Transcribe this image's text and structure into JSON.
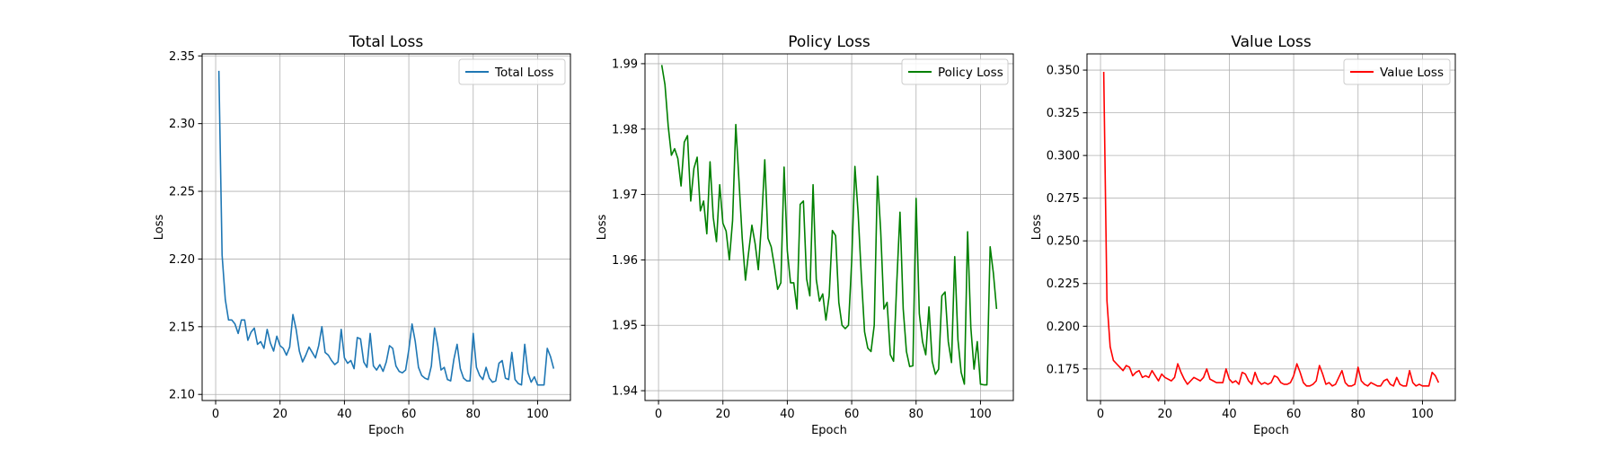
{
  "chart_data": [
    {
      "type": "line",
      "title": "Total Loss",
      "xlabel": "Epoch",
      "ylabel": "Loss",
      "xlim": [
        -4.2,
        110.2
      ],
      "ylim": [
        2.0955,
        2.3515
      ],
      "xticks": [
        0,
        20,
        40,
        60,
        80,
        100
      ],
      "yticks": [
        2.1,
        2.15,
        2.2,
        2.25,
        2.3,
        2.35
      ],
      "ytick_labels": [
        "2.10",
        "2.15",
        "2.20",
        "2.25",
        "2.30",
        "2.35"
      ],
      "grid": true,
      "legend_position": "top-right",
      "color": "#1f77b4",
      "series": [
        {
          "name": "Total Loss",
          "x": [
            1,
            2,
            3,
            4,
            5,
            6,
            7,
            8,
            9,
            10,
            11,
            12,
            13,
            14,
            15,
            16,
            17,
            18,
            19,
            20,
            21,
            22,
            23,
            24,
            25,
            26,
            27,
            28,
            29,
            30,
            31,
            32,
            33,
            34,
            35,
            36,
            37,
            38,
            39,
            40,
            41,
            42,
            43,
            44,
            45,
            46,
            47,
            48,
            49,
            50,
            51,
            52,
            53,
            54,
            55,
            56,
            57,
            58,
            59,
            60,
            61,
            62,
            63,
            64,
            65,
            66,
            67,
            68,
            69,
            70,
            71,
            72,
            73,
            74,
            75,
            76,
            77,
            78,
            79,
            80,
            81,
            82,
            83,
            84,
            85,
            86,
            87,
            88,
            89,
            90,
            91,
            92,
            93,
            94,
            95,
            96,
            97,
            98,
            99,
            100,
            101,
            102,
            103,
            104,
            105
          ],
          "y": [
            2.339,
            2.203,
            2.17,
            2.155,
            2.155,
            2.152,
            2.145,
            2.155,
            2.155,
            2.14,
            2.146,
            2.149,
            2.137,
            2.139,
            2.134,
            2.148,
            2.138,
            2.132,
            2.143,
            2.136,
            2.134,
            2.129,
            2.135,
            2.159,
            2.148,
            2.132,
            2.124,
            2.129,
            2.135,
            2.131,
            2.127,
            2.136,
            2.15,
            2.131,
            2.129,
            2.125,
            2.122,
            2.124,
            2.148,
            2.127,
            2.123,
            2.125,
            2.119,
            2.142,
            2.141,
            2.124,
            2.12,
            2.145,
            2.121,
            2.118,
            2.122,
            2.117,
            2.124,
            2.136,
            2.134,
            2.121,
            2.117,
            2.116,
            2.118,
            2.133,
            2.152,
            2.139,
            2.12,
            2.114,
            2.112,
            2.111,
            2.121,
            2.149,
            2.136,
            2.118,
            2.12,
            2.111,
            2.11,
            2.126,
            2.137,
            2.119,
            2.112,
            2.11,
            2.11,
            2.145,
            2.12,
            2.114,
            2.111,
            2.12,
            2.112,
            2.109,
            2.11,
            2.123,
            2.125,
            2.112,
            2.111,
            2.131,
            2.111,
            2.108,
            2.107,
            2.137,
            2.116,
            2.109,
            2.113,
            2.107,
            2.107,
            2.107,
            2.134,
            2.128,
            2.119
          ]
        }
      ]
    },
    {
      "type": "line",
      "title": "Policy Loss",
      "xlabel": "Epoch",
      "ylabel": "Loss",
      "xlim": [
        -4.2,
        110.2
      ],
      "ylim": [
        1.9385,
        1.9915
      ],
      "xticks": [
        0,
        20,
        40,
        60,
        80,
        100
      ],
      "yticks": [
        1.94,
        1.95,
        1.96,
        1.97,
        1.98,
        1.99
      ],
      "ytick_labels": [
        "1.94",
        "1.95",
        "1.96",
        "1.97",
        "1.98",
        "1.99"
      ],
      "grid": true,
      "legend_position": "top-right",
      "color": "#008000",
      "series": [
        {
          "name": "Policy Loss",
          "x": [
            1,
            2,
            3,
            4,
            5,
            6,
            7,
            8,
            9,
            10,
            11,
            12,
            13,
            14,
            15,
            16,
            17,
            18,
            19,
            20,
            21,
            22,
            23,
            24,
            25,
            26,
            27,
            28,
            29,
            30,
            31,
            32,
            33,
            34,
            35,
            36,
            37,
            38,
            39,
            40,
            41,
            42,
            43,
            44,
            45,
            46,
            47,
            48,
            49,
            50,
            51,
            52,
            53,
            54,
            55,
            56,
            57,
            58,
            59,
            60,
            61,
            62,
            63,
            64,
            65,
            66,
            67,
            68,
            69,
            70,
            71,
            72,
            73,
            74,
            75,
            76,
            77,
            78,
            79,
            80,
            81,
            82,
            83,
            84,
            85,
            86,
            87,
            88,
            89,
            90,
            91,
            92,
            93,
            94,
            95,
            96,
            97,
            98,
            99,
            100,
            101,
            102,
            103,
            104,
            105
          ],
          "y": [
            1.9898,
            1.9868,
            1.9805,
            1.976,
            1.977,
            1.9755,
            1.9713,
            1.978,
            1.979,
            1.969,
            1.974,
            1.9757,
            1.9675,
            1.969,
            1.964,
            1.975,
            1.9665,
            1.9628,
            1.9715,
            1.9656,
            1.9644,
            1.96,
            1.966,
            1.9807,
            1.972,
            1.9633,
            1.9569,
            1.9612,
            1.9653,
            1.9625,
            1.9585,
            1.9657,
            1.9753,
            1.9633,
            1.962,
            1.959,
            1.9555,
            1.9565,
            1.9742,
            1.9614,
            1.9565,
            1.9565,
            1.9525,
            1.9685,
            1.969,
            1.9571,
            1.9545,
            1.9715,
            1.957,
            1.9537,
            1.9548,
            1.9508,
            1.9545,
            1.9645,
            1.9637,
            1.9535,
            1.95,
            1.9495,
            1.95,
            1.9598,
            1.9743,
            1.9671,
            1.9575,
            1.949,
            1.9465,
            1.946,
            1.95,
            1.9728,
            1.9645,
            1.9525,
            1.9535,
            1.9455,
            1.9445,
            1.9565,
            1.9673,
            1.9525,
            1.946,
            1.9437,
            1.9438,
            1.9694,
            1.9518,
            1.9475,
            1.9455,
            1.9528,
            1.9445,
            1.9425,
            1.9433,
            1.9545,
            1.9551,
            1.9475,
            1.9443,
            1.9605,
            1.9478,
            1.9428,
            1.941,
            1.9643,
            1.9497,
            1.9433,
            1.9475,
            1.941,
            1.9409,
            1.9409,
            1.962,
            1.958,
            1.9525
          ]
        }
      ]
    },
    {
      "type": "line",
      "title": "Value Loss",
      "xlabel": "Epoch",
      "ylabel": "Loss",
      "xlim": [
        -4.2,
        110.2
      ],
      "ylim": [
        0.1565,
        0.3595
      ],
      "xticks": [
        0,
        20,
        40,
        60,
        80,
        100
      ],
      "yticks": [
        0.175,
        0.2,
        0.225,
        0.25,
        0.275,
        0.3,
        0.325,
        0.35
      ],
      "ytick_labels": [
        "0.175",
        "0.200",
        "0.225",
        "0.250",
        "0.275",
        "0.300",
        "0.325",
        "0.350"
      ],
      "grid": true,
      "legend_position": "top-right",
      "color": "#ff0000",
      "series": [
        {
          "name": "Value Loss",
          "x": [
            1,
            2,
            3,
            4,
            5,
            6,
            7,
            8,
            9,
            10,
            11,
            12,
            13,
            14,
            15,
            16,
            17,
            18,
            19,
            20,
            21,
            22,
            23,
            24,
            25,
            26,
            27,
            28,
            29,
            30,
            31,
            32,
            33,
            34,
            35,
            36,
            37,
            38,
            39,
            40,
            41,
            42,
            43,
            44,
            45,
            46,
            47,
            48,
            49,
            50,
            51,
            52,
            53,
            54,
            55,
            56,
            57,
            58,
            59,
            60,
            61,
            62,
            63,
            64,
            65,
            66,
            67,
            68,
            69,
            70,
            71,
            72,
            73,
            74,
            75,
            76,
            77,
            78,
            79,
            80,
            81,
            82,
            83,
            84,
            85,
            86,
            87,
            88,
            89,
            90,
            91,
            92,
            93,
            94,
            95,
            96,
            97,
            98,
            99,
            100,
            101,
            102,
            103,
            104,
            105
          ],
          "y": [
            0.349,
            0.215,
            0.188,
            0.18,
            0.178,
            0.176,
            0.174,
            0.177,
            0.176,
            0.171,
            0.173,
            0.174,
            0.17,
            0.171,
            0.17,
            0.174,
            0.171,
            0.168,
            0.172,
            0.17,
            0.169,
            0.168,
            0.17,
            0.178,
            0.173,
            0.169,
            0.166,
            0.168,
            0.17,
            0.169,
            0.168,
            0.17,
            0.175,
            0.169,
            0.168,
            0.167,
            0.167,
            0.167,
            0.175,
            0.169,
            0.167,
            0.168,
            0.166,
            0.173,
            0.172,
            0.168,
            0.166,
            0.173,
            0.168,
            0.166,
            0.167,
            0.166,
            0.167,
            0.171,
            0.17,
            0.167,
            0.166,
            0.166,
            0.167,
            0.171,
            0.178,
            0.173,
            0.167,
            0.165,
            0.165,
            0.166,
            0.168,
            0.177,
            0.172,
            0.166,
            0.167,
            0.165,
            0.166,
            0.17,
            0.174,
            0.167,
            0.165,
            0.165,
            0.166,
            0.176,
            0.168,
            0.166,
            0.165,
            0.167,
            0.166,
            0.165,
            0.165,
            0.168,
            0.169,
            0.166,
            0.165,
            0.17,
            0.166,
            0.165,
            0.165,
            0.174,
            0.167,
            0.165,
            0.166,
            0.165,
            0.165,
            0.165,
            0.173,
            0.171,
            0.167
          ]
        }
      ]
    }
  ]
}
